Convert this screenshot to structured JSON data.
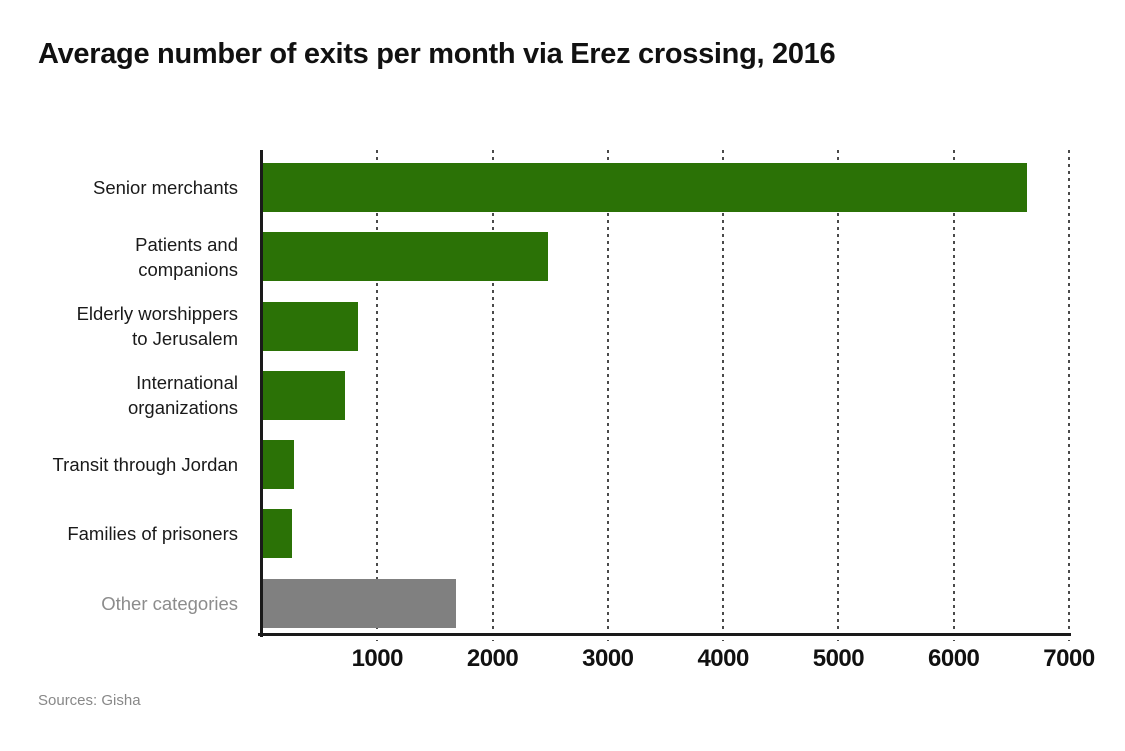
{
  "chart_data": {
    "type": "bar",
    "orientation": "horizontal",
    "title": "Average number of exits per month via Erez crossing, 2016",
    "categories": [
      "Senior merchants",
      "Patients and\ncompanions",
      "Elderly worshippers\nto Jerusalem",
      "International\norganizations",
      "Transit through Jordan",
      "Families of prisoners",
      "Other categories"
    ],
    "values": [
      6630,
      2470,
      820,
      710,
      270,
      250,
      1670
    ],
    "bar_colors": [
      "#2b7206",
      "#2b7206",
      "#2b7206",
      "#2b7206",
      "#2b7206",
      "#2b7206",
      "#808080"
    ],
    "label_muted": [
      false,
      false,
      false,
      false,
      false,
      false,
      true
    ],
    "xlim": [
      0,
      7000
    ],
    "xticks": [
      "1000",
      "2000",
      "3000",
      "4000",
      "5000",
      "6000",
      "7000"
    ],
    "grid": "vertical-dotted",
    "legend": "none"
  },
  "footer": {
    "source": "Sources: Gisha"
  },
  "colors": {
    "bar_green": "#2b7206",
    "bar_gray": "#808080",
    "axis": "#1a1a1a",
    "text": "#1a1a1a",
    "muted_text": "#8c8c8c",
    "background": "#ffffff"
  }
}
